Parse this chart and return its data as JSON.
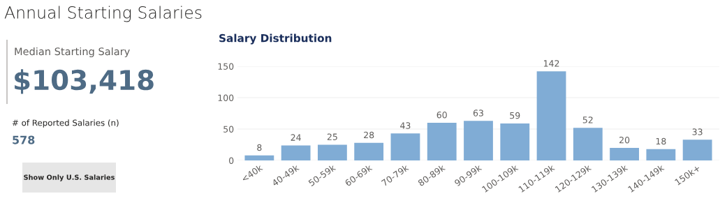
{
  "chart_data": [
    {
      "type": "other",
      "title": "Annual Starting Salaries",
      "annotations": [
        "Median Starting Salary",
        "$103,418",
        "# of Reported Salaries (n)",
        "578",
        "Show Only U.S. Salaries"
      ]
    },
    {
      "type": "bar",
      "title": "Salary Distribution",
      "categories": [
        "<40k",
        "40-49k",
        "50-59k",
        "60-69k",
        "70-79k",
        "80-89k",
        "90-99k",
        "100-109k",
        "110-119k",
        "120-129k",
        "130-139k",
        "140-149k",
        "150k+"
      ],
      "values": [
        8,
        24,
        25,
        28,
        43,
        60,
        63,
        59,
        142,
        52,
        20,
        18,
        33
      ],
      "color": "#80acd5",
      "ylim": [
        0,
        150
      ],
      "yticks": [
        0,
        50,
        100,
        150
      ],
      "grid": "y",
      "data_labels": true
    }
  ]
}
